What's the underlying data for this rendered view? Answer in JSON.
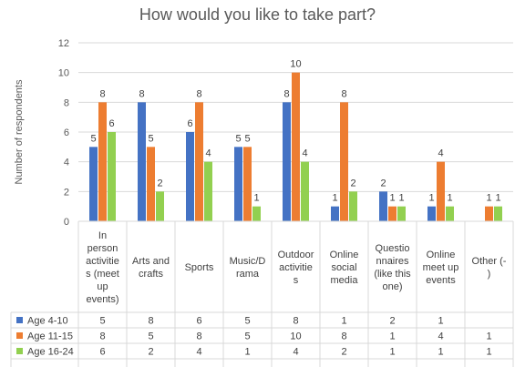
{
  "chart_data": {
    "type": "bar",
    "title": "How would you like to take part?",
    "ylabel": "Number of respondents",
    "ylim": [
      0,
      12
    ],
    "yticks": [
      0,
      2,
      4,
      6,
      8,
      10,
      12
    ],
    "grid": true,
    "legend": "data-table",
    "categories": [
      "In person activities (meet up events)",
      "Arts and crafts",
      "Sports",
      "Music/Drama",
      "Outdoor activities",
      "Online social media",
      "Questionnaires (like this one)",
      "Online meet up events",
      "Other (-)"
    ],
    "category_lines": [
      [
        "In",
        "person",
        "activitie",
        "s (meet",
        "up",
        "events)"
      ],
      [
        "Arts and",
        "crafts"
      ],
      [
        "Sports"
      ],
      [
        "Music/D",
        "rama"
      ],
      [
        "Outdoor",
        "activitie",
        "s"
      ],
      [
        "Online",
        "social",
        "media"
      ],
      [
        "Questio",
        "nnaires",
        "(like this",
        "one)"
      ],
      [
        "Online",
        "meet up",
        "events"
      ],
      [
        "Other (-",
        ")"
      ]
    ],
    "series": [
      {
        "name": "Age 4-10",
        "color": "#4472C4",
        "values": [
          5,
          8,
          6,
          5,
          8,
          1,
          2,
          1,
          null
        ]
      },
      {
        "name": "Age 11-15",
        "color": "#ED7D31",
        "values": [
          8,
          5,
          8,
          5,
          10,
          8,
          1,
          4,
          1
        ]
      },
      {
        "name": "Age 16-24",
        "color": "#92D050",
        "values": [
          6,
          2,
          4,
          1,
          4,
          2,
          1,
          1,
          1
        ]
      }
    ]
  }
}
